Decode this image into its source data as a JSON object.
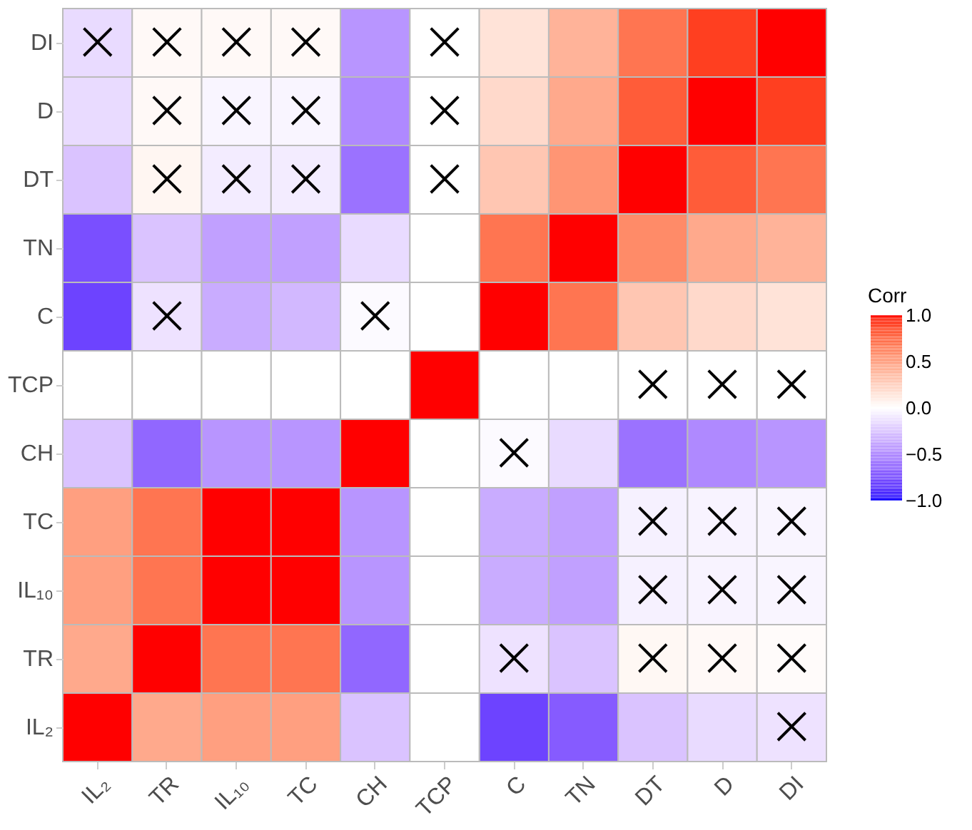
{
  "chart_data": {
    "type": "heatmap",
    "legend_title": "Corr",
    "categories": [
      "IL₂",
      "TR",
      "IL₁₀",
      "TC",
      "CH",
      "TCP",
      "C",
      "TN",
      "DT",
      "D",
      "DI"
    ],
    "y_categories": [
      "DI",
      "D",
      "DT",
      "TN",
      "C",
      "TCP",
      "CH",
      "TC",
      "IL₁₀",
      "TR",
      "IL₂"
    ],
    "cells": [
      [
        -0.15,
        0.03,
        0.03,
        0.03,
        -0.45,
        0,
        0.15,
        0.4,
        0.7,
        0.9,
        1
      ],
      [
        -0.15,
        0.03,
        -0.04,
        -0.04,
        -0.5,
        0,
        0.2,
        0.45,
        0.8,
        1,
        0.9
      ],
      [
        -0.25,
        0.05,
        -0.08,
        -0.08,
        -0.6,
        0,
        0.3,
        0.55,
        1,
        0.8,
        0.7
      ],
      [
        -0.75,
        -0.25,
        -0.4,
        -0.4,
        -0.15,
        null,
        0.7,
        1,
        0.6,
        0.45,
        0.4
      ],
      [
        -0.8,
        -0.12,
        -0.35,
        -0.3,
        -0.02,
        null,
        1,
        0.7,
        0.3,
        0.2,
        0.15
      ],
      [
        null,
        null,
        null,
        null,
        null,
        1,
        null,
        null,
        0,
        0,
        0
      ],
      [
        -0.25,
        -0.65,
        -0.45,
        -0.45,
        1,
        null,
        -0.02,
        -0.15,
        -0.6,
        -0.5,
        -0.45
      ],
      [
        0.5,
        0.7,
        1,
        1,
        -0.45,
        null,
        -0.35,
        -0.4,
        -0.06,
        -0.05,
        -0.04
      ],
      [
        0.5,
        0.7,
        1,
        1,
        -0.45,
        null,
        -0.35,
        -0.4,
        -0.06,
        -0.05,
        -0.04
      ],
      [
        0.45,
        1,
        0.7,
        0.7,
        -0.65,
        null,
        -0.12,
        -0.25,
        0.04,
        0.03,
        0.02
      ],
      [
        1,
        0.45,
        0.5,
        0.5,
        -0.25,
        null,
        -0.8,
        -0.7,
        -0.25,
        -0.15,
        -0.12
      ]
    ],
    "cell_labels": [
      [
        "×",
        "×",
        "×",
        "×",
        null,
        "×",
        null,
        null,
        null,
        null,
        null
      ],
      [
        null,
        "×",
        "×",
        "×",
        null,
        "×",
        null,
        null,
        null,
        null,
        null
      ],
      [
        null,
        "×",
        "×",
        "×",
        null,
        "×",
        null,
        null,
        null,
        null,
        null
      ],
      [
        null,
        null,
        null,
        null,
        null,
        null,
        null,
        null,
        null,
        null,
        null
      ],
      [
        null,
        "×",
        null,
        null,
        "×",
        null,
        null,
        null,
        null,
        null,
        null
      ],
      [
        null,
        null,
        null,
        null,
        null,
        null,
        null,
        null,
        "×",
        "×",
        "×"
      ],
      [
        null,
        null,
        null,
        null,
        null,
        null,
        "×",
        null,
        null,
        null,
        null
      ],
      [
        null,
        null,
        null,
        null,
        null,
        null,
        null,
        null,
        "×",
        "×",
        "×"
      ],
      [
        null,
        null,
        null,
        null,
        null,
        null,
        null,
        null,
        "×",
        "×",
        "×"
      ],
      [
        null,
        null,
        null,
        null,
        null,
        null,
        "×",
        null,
        "×",
        "×",
        "×"
      ],
      [
        null,
        null,
        null,
        null,
        null,
        null,
        null,
        null,
        null,
        null,
        "×"
      ]
    ],
    "clim": [
      -1,
      1
    ],
    "cticks": [
      {
        "value": -1,
        "label": "−1.0"
      },
      {
        "value": -0.5,
        "label": "−0.5"
      },
      {
        "value": 0,
        "label": "0.0"
      },
      {
        "value": 0.5,
        "label": "0.5"
      },
      {
        "value": 1,
        "label": "1.0"
      }
    ]
  }
}
